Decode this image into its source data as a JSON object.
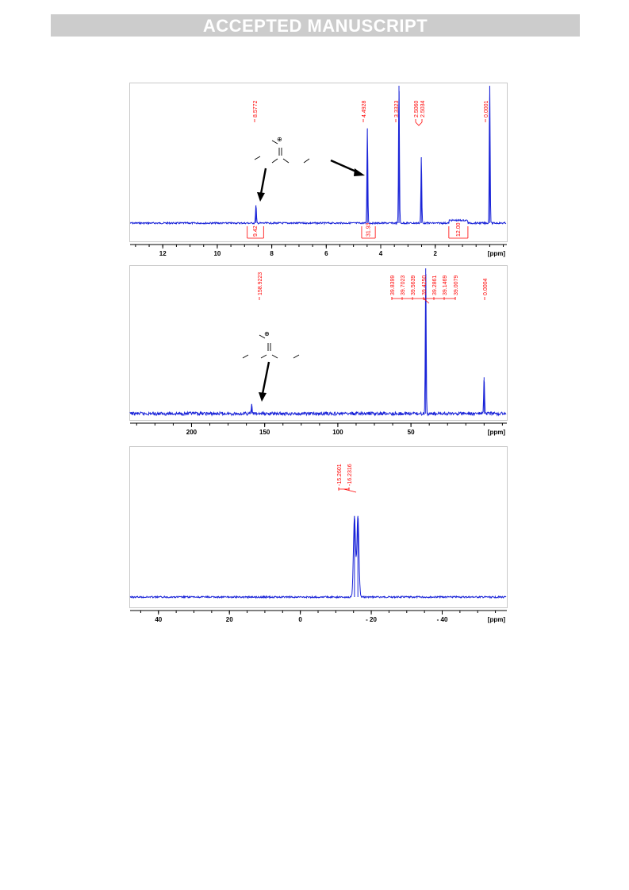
{
  "banner": {
    "text": "ACCEPTED MANUSCRIPT"
  },
  "watermark": {
    "text": "ACCEPTED MANUSCRIPT"
  },
  "chart_data": [
    {
      "type": "line",
      "xlabel": "[ppm]",
      "xlim": [
        13.2,
        -0.6
      ],
      "x_ticks": [
        12,
        10,
        8,
        6,
        4,
        2
      ],
      "peaks": [
        {
          "shift": 8.58,
          "height": 0.13,
          "label": "8.5772"
        },
        {
          "shift": 4.49,
          "height": 0.69,
          "label": "4.4928"
        },
        {
          "shift": 3.33,
          "height": 1.0,
          "label": "3.3323"
        },
        {
          "shift": 2.51,
          "height": 0.48,
          "label": "2.5060"
        },
        {
          "shift": 2.505,
          "height": 0.0,
          "label": "2.5034"
        },
        {
          "shift": 0.0,
          "height": 1.0,
          "label": "0.0001"
        }
      ],
      "peak_labels": [
        "8.5772",
        "4.4928",
        "3.3323",
        "2.5060",
        "2.5034",
        "0.0001"
      ],
      "integrals": [
        {
          "label": "9.42",
          "from": 8.9,
          "to": 8.3
        },
        {
          "label": "31.93",
          "from": 4.7,
          "to": 4.2
        },
        {
          "label": "12.00",
          "from": 1.5,
          "to": 0.8
        }
      ]
    },
    {
      "type": "line",
      "xlabel": "[ppm]",
      "xlim": [
        242,
        -15
      ],
      "x_ticks": [
        200,
        150,
        100,
        50
      ],
      "peaks": [
        {
          "shift": 158.92,
          "height": 0.06,
          "label": "158.9223"
        },
        {
          "shift": 39.9,
          "height": 1.0,
          "label": "39.4250"
        },
        {
          "shift": 0.0,
          "height": 0.25,
          "label": "0.0004"
        }
      ],
      "peak_labels": [
        "158.9223",
        "39.8399",
        "39.7023",
        "39.5639",
        "39.4250",
        "39.2861",
        "39.1469",
        "39.0079",
        "0.0004"
      ]
    },
    {
      "type": "line",
      "xlabel": "[ppm]",
      "xlim": [
        48,
        -58
      ],
      "x_ticks": [
        40,
        20,
        0,
        -20,
        -40
      ],
      "x_tick_labels": [
        "40",
        "20",
        "0",
        "- 20",
        "- 40"
      ],
      "peaks": [
        {
          "shift": -15.26,
          "height": 0.55,
          "label": "-15.2601"
        },
        {
          "shift": -16.23,
          "height": 0.55,
          "label": "-16.2316"
        }
      ],
      "peak_labels": [
        "-15.2601",
        "-16.2316"
      ]
    }
  ]
}
